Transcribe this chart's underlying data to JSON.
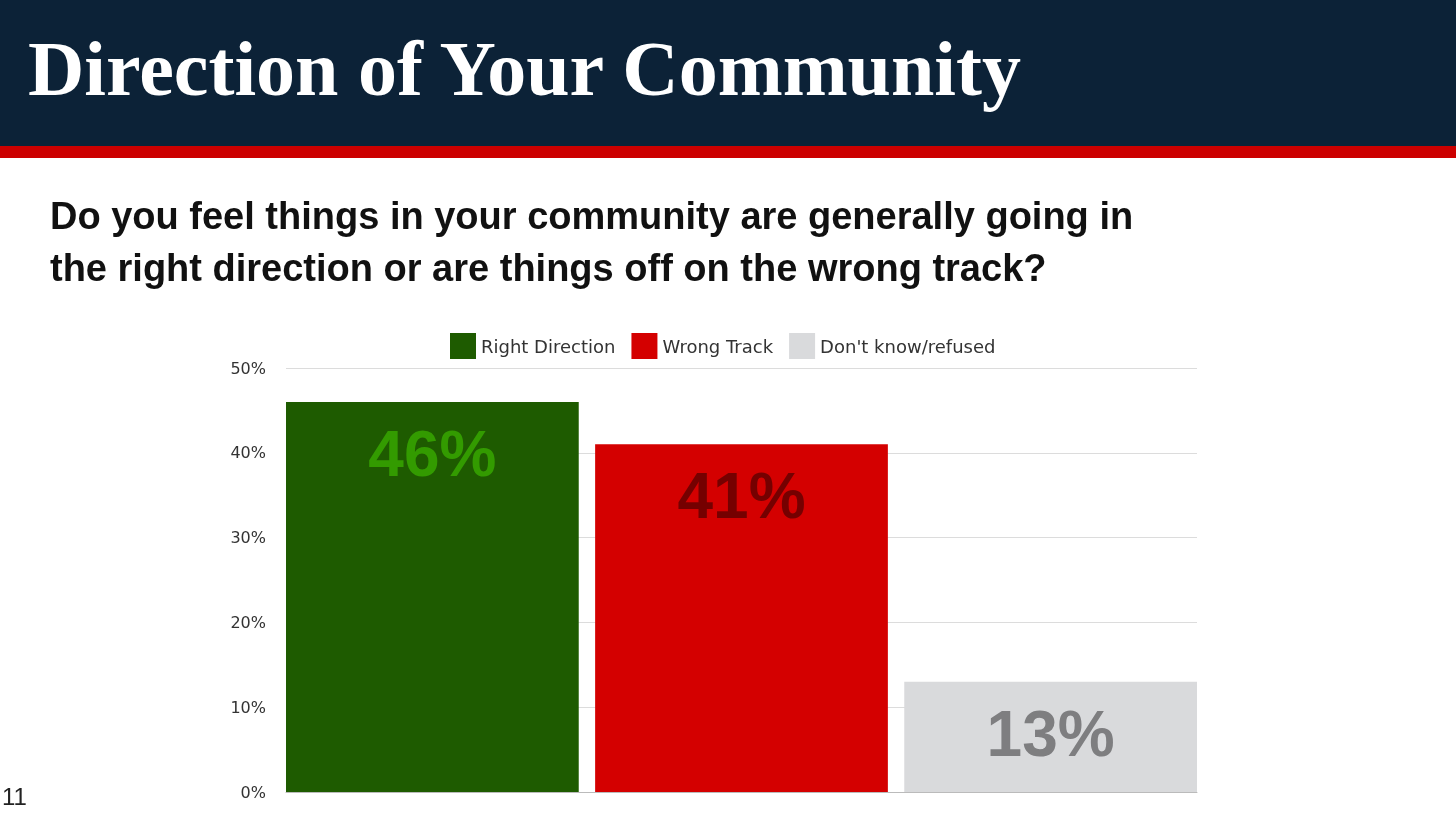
{
  "chart_data": {
    "type": "bar",
    "title": "Direction of Your Community",
    "subtitle": "Do you feel things in your community are generally going in the right direction or are things off on the wrong track?",
    "categories": [
      null
    ],
    "series": [
      {
        "name": "Right Direction",
        "color": "#1e5b00",
        "values": [
          46
        ],
        "value_labels": [
          "46%"
        ]
      },
      {
        "name": "Wrong Track",
        "color": "#d40000",
        "values": [
          41
        ],
        "value_labels": [
          "41%"
        ]
      },
      {
        "name": "Don't know/refused",
        "color": "#d9dadc",
        "values": [
          13
        ],
        "value_labels": [
          "13%"
        ]
      }
    ],
    "ylim": [
      0,
      50
    ],
    "yticks": [
      {
        "value": 0,
        "label": "0%"
      },
      {
        "value": 10,
        "label": "10%"
      },
      {
        "value": 20,
        "label": "20%"
      },
      {
        "value": 30,
        "label": "30%"
      },
      {
        "value": 40,
        "label": "40%"
      },
      {
        "value": 50,
        "label": "50%"
      }
    ],
    "grid": "y",
    "legend": "top",
    "annotations": [
      "11"
    ]
  }
}
